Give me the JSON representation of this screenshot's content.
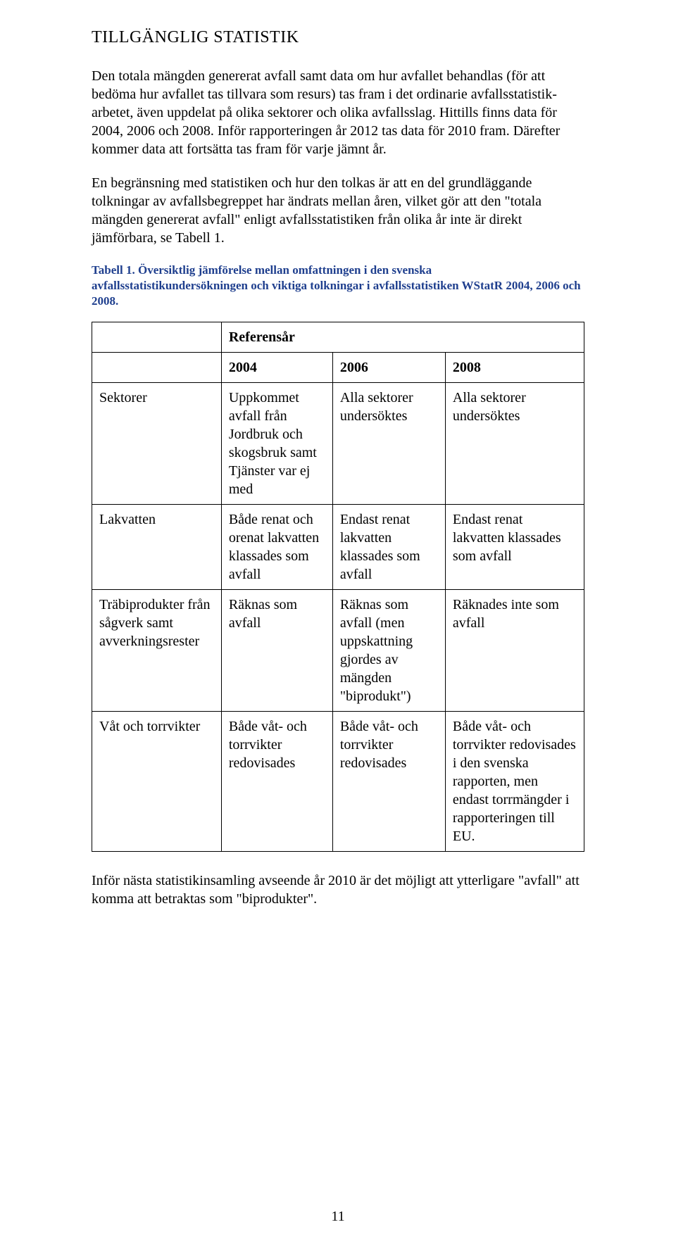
{
  "colors": {
    "text": "#000000",
    "caption": "#1f3f8e",
    "background": "#ffffff",
    "table_border": "#000000"
  },
  "typography": {
    "body_fontsize_pt": 15,
    "heading_fontsize_pt": 18,
    "caption_fontsize_pt": 13,
    "font_family": "Times New Roman"
  },
  "heading": "TILLGÄNGLIG STATISTIK",
  "paragraphs": {
    "p1": "Den totala mängden genererat avfall samt data om hur avfallet behandlas (för att bedöma hur avfallet tas tillvara som resurs) tas fram i det ordinarie avfallsstatistik-arbetet, även uppdelat på olika sektorer och olika avfallsslag. Hittills finns data för 2004, 2006 och 2008. Inför rapporteringen år 2012 tas data för 2010 fram. Därefter kommer data att fortsätta tas fram för varje jämnt år.",
    "p2": "En begränsning med statistiken och hur den tolkas är att en del grundläggande tolkningar av avfallsbegreppet har ändrats mellan åren, vilket gör att den \"totala mängden genererat avfall\" enligt avfallsstatistiken från olika år inte är direkt jämförbara, se Tabell 1.",
    "p_after_table": "Inför nästa statistikinsamling avseende år 2010 är det möjligt att ytterligare \"avfall\" att komma att betraktas som \"biprodukter\"."
  },
  "table_caption": "Tabell 1. Översiktlig jämförelse mellan omfattningen i den svenska avfallsstatistikundersökningen och viktiga tolkningar i avfallsstatistiken WStatR 2004, 2006 och 2008.",
  "table": {
    "ref_label": "Referensår",
    "years": [
      "2004",
      "2006",
      "2008"
    ],
    "rows": [
      {
        "label": "Sektorer",
        "cells": [
          "Uppkommet avfall från Jordbruk och skogsbruk samt Tjänster var ej med",
          "Alla sektorer undersöktes",
          "Alla sektorer undersöktes"
        ]
      },
      {
        "label": "Lakvatten",
        "cells": [
          "Både renat och orenat lakvatten klassades som avfall",
          "Endast renat lakvatten klassades som avfall",
          "Endast renat lakvatten klassades som avfall"
        ]
      },
      {
        "label": "Träbiprodukter från sågverk samt avverkningsrester",
        "cells": [
          "Räknas som avfall",
          "Räknas som avfall (men uppskattning gjordes av mängden \"biprodukt\")",
          "Räknades inte som avfall"
        ]
      },
      {
        "label": "Våt och torrvikter",
        "cells": [
          "Både våt- och torrvikter redovisades",
          "Både våt- och torrvikter redovisades",
          "Både våt- och torrvikter redovisades i den svenska rapporten, men endast torrmängder i rapporteringen till EU."
        ]
      }
    ]
  },
  "page_number": "11"
}
